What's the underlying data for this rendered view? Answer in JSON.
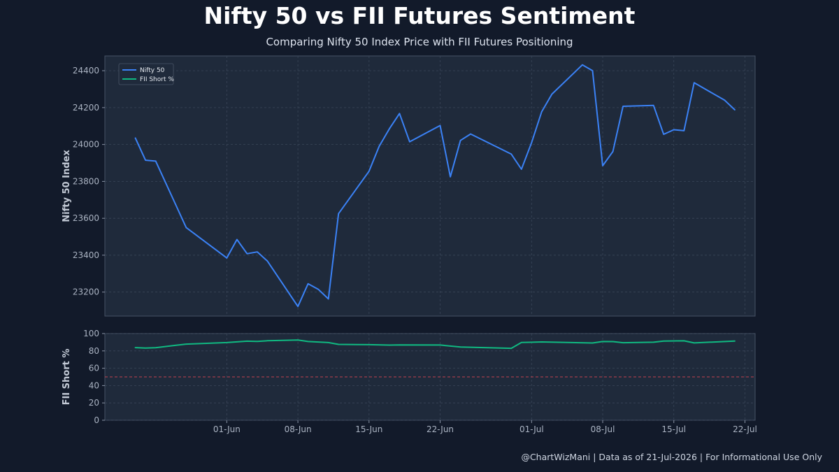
{
  "header": {
    "title": "Nifty 50 vs FII Futures Sentiment",
    "subtitle": "Comparing Nifty 50 Index Price with FII Futures Positioning"
  },
  "footer": {
    "text": "@ChartWizMani | Data as of 21-Jul-2026 | For Informational Use Only"
  },
  "colors": {
    "nifty_line": "#3b82f6",
    "fii_line": "#10b981",
    "threshold_line": "#c2434f",
    "panel_bg": "#1f2a3b",
    "grid": "#3a4659"
  },
  "chart_data": [
    {
      "type": "line",
      "panel": "top",
      "ylabel": "Nifty 50 Index",
      "ylim": [
        23070,
        24480
      ],
      "yticks": [
        23200,
        23400,
        23600,
        23800,
        24000,
        24200,
        24400
      ],
      "xlim": [
        "2026-05-20",
        "2026-07-23"
      ],
      "xticks": [
        "2026-06-01",
        "2026-06-08",
        "2026-06-15",
        "2026-06-22",
        "2026-07-01",
        "2026-07-08",
        "2026-07-15",
        "2026-07-22"
      ],
      "xtick_labels": [
        "01-Jun",
        "08-Jun",
        "15-Jun",
        "22-Jun",
        "01-Jul",
        "08-Jul",
        "15-Jul",
        "22-Jul"
      ],
      "grid": true,
      "legend_position": "top-left",
      "series": [
        {
          "name": "Nifty 50",
          "color": "#3b82f6",
          "x": [
            "2026-05-23",
            "2026-05-24",
            "2026-05-25",
            "2026-05-28",
            "2026-06-01",
            "2026-06-02",
            "2026-06-03",
            "2026-06-04",
            "2026-06-05",
            "2026-06-08",
            "2026-06-09",
            "2026-06-10",
            "2026-06-11",
            "2026-06-12",
            "2026-06-15",
            "2026-06-16",
            "2026-06-17",
            "2026-06-18",
            "2026-06-19",
            "2026-06-22",
            "2026-06-23",
            "2026-06-24",
            "2026-06-25",
            "2026-06-29",
            "2026-06-30",
            "2026-07-01",
            "2026-07-02",
            "2026-07-03",
            "2026-07-06",
            "2026-07-07",
            "2026-07-08",
            "2026-07-09",
            "2026-07-10",
            "2026-07-13",
            "2026-07-14",
            "2026-07-15",
            "2026-07-16",
            "2026-07-17",
            "2026-07-20",
            "2026-07-21"
          ],
          "y": [
            24035,
            23915,
            23910,
            23550,
            23385,
            23485,
            23408,
            23418,
            23368,
            23122,
            23245,
            23215,
            23163,
            23625,
            23855,
            23990,
            24085,
            24168,
            24015,
            24103,
            23825,
            24022,
            24057,
            23948,
            23866,
            24010,
            24178,
            24273,
            24432,
            24400,
            23885,
            23962,
            24207,
            24212,
            24055,
            24080,
            24075,
            24335,
            24240,
            24188
          ]
        }
      ]
    },
    {
      "type": "line",
      "panel": "bottom",
      "ylabel": "FII Short %",
      "ylim": [
        0,
        100
      ],
      "yticks": [
        0,
        20,
        40,
        60,
        80,
        100
      ],
      "reference_line": 50,
      "grid": true,
      "series": [
        {
          "name": "FII Short %",
          "color": "#10b981",
          "x": [
            "2026-05-23",
            "2026-05-24",
            "2026-05-25",
            "2026-05-27",
            "2026-05-28",
            "2026-06-01",
            "2026-06-03",
            "2026-06-04",
            "2026-06-05",
            "2026-06-08",
            "2026-06-09",
            "2026-06-11",
            "2026-06-12",
            "2026-06-15",
            "2026-06-17",
            "2026-06-18",
            "2026-06-22",
            "2026-06-24",
            "2026-06-29",
            "2026-06-30",
            "2026-07-02",
            "2026-07-07",
            "2026-07-08",
            "2026-07-09",
            "2026-07-10",
            "2026-07-13",
            "2026-07-14",
            "2026-07-16",
            "2026-07-17",
            "2026-07-21"
          ],
          "y": [
            83.8,
            83.2,
            83.6,
            86.5,
            87.8,
            89.6,
            91.2,
            90.9,
            91.7,
            92.5,
            90.8,
            89.6,
            87.5,
            87.2,
            86.7,
            86.9,
            86.8,
            84.4,
            83.0,
            89.7,
            90.3,
            89.1,
            90.8,
            90.7,
            89.4,
            90.0,
            91.4,
            91.6,
            89.2,
            91.4
          ]
        }
      ]
    }
  ]
}
